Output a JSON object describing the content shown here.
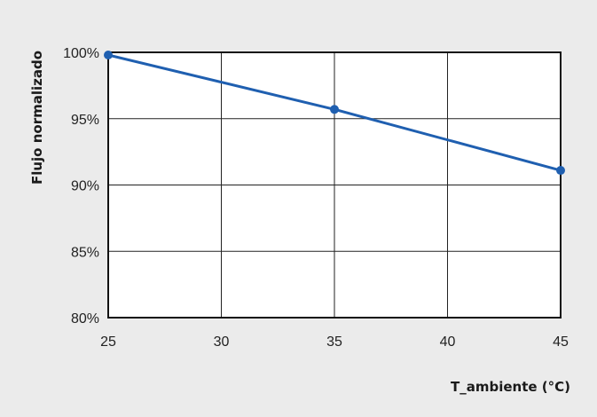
{
  "chart_data": {
    "type": "line",
    "title": "",
    "xlabel": "T_ambiente (°C)",
    "ylabel": "Flujo normalizado",
    "xlim": [
      25,
      45
    ],
    "ylim": [
      80,
      100
    ],
    "x_ticks": [
      25,
      30,
      35,
      40,
      45
    ],
    "y_ticks": [
      80,
      85,
      90,
      95,
      100
    ],
    "x_tick_labels": [
      "25",
      "30",
      "35",
      "40",
      "45"
    ],
    "y_tick_labels": [
      "80%",
      "85%",
      "90%",
      "95%",
      "100%"
    ],
    "grid": true,
    "legend": "none",
    "series": [
      {
        "x": [
          25,
          35,
          45
        ],
        "y": [
          99.8,
          95.7,
          91.1
        ],
        "color": "#1f5fb0",
        "markers": true
      }
    ]
  },
  "colors": {
    "background": "#ebebeb",
    "plot_background": "#ffffff",
    "grid": "#222222",
    "series": "#1f5fb0"
  }
}
